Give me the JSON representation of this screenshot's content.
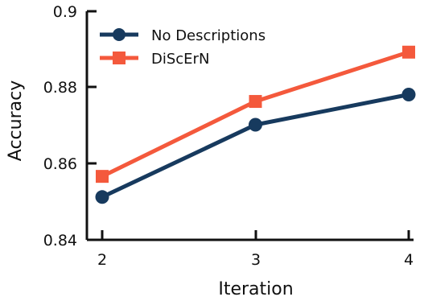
{
  "chart_data": {
    "type": "line",
    "x": [
      2,
      3,
      4
    ],
    "xlabel": "Iteration",
    "ylabel": "Accuracy",
    "xlim": [
      1.9,
      4.05
    ],
    "ylim": [
      0.84,
      0.9
    ],
    "xticks": [
      "2",
      "3",
      "4"
    ],
    "yticks": [
      "0.84",
      "0.86",
      "0.88",
      "0.9"
    ],
    "grid": false,
    "legend_position": "top-left",
    "series": [
      {
        "name": "No Descriptions",
        "values": [
          0.8512,
          0.8701,
          0.878
        ],
        "color": "#173a5e",
        "marker": "circle"
      },
      {
        "name": "DiScErN",
        "values": [
          0.8566,
          0.8762,
          0.8891
        ],
        "color": "#f4593c",
        "marker": "square"
      }
    ]
  }
}
